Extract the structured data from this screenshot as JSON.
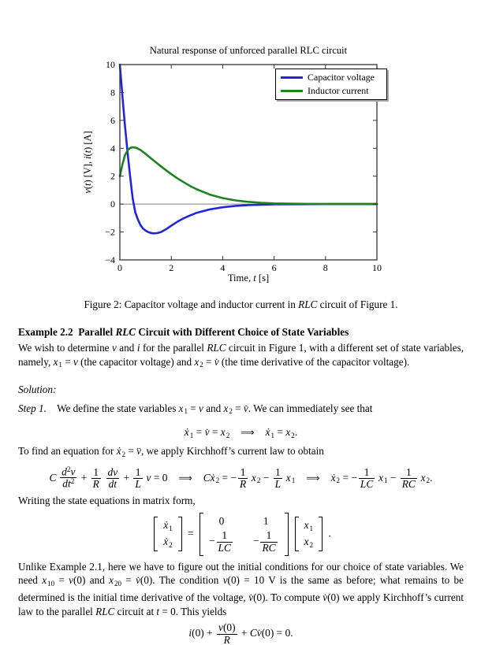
{
  "chart_data": {
    "type": "line",
    "title": "Natural response of unforced parallel RLC circuit",
    "xlabel": "Time, t [s]",
    "ylabel": "v(t) [V], i(t) [A]",
    "xlim": [
      0,
      10
    ],
    "ylim": [
      -4,
      10
    ],
    "xticks": [
      0,
      2,
      4,
      6,
      8,
      10
    ],
    "yticks": [
      -4,
      -2,
      0,
      2,
      4,
      6,
      8,
      10
    ],
    "grid": "none",
    "zero_line": true,
    "legend_position": "top-right",
    "axis_color": "#333333",
    "zero_line_color": "#808080",
    "series": [
      {
        "name": "Capacitor voltage",
        "color": "#2424dd",
        "x": [
          0,
          0.1,
          0.2,
          0.3,
          0.4,
          0.5,
          0.6,
          0.7,
          0.8,
          0.9,
          1.0,
          1.1,
          1.2,
          1.3,
          1.45,
          1.6,
          1.8,
          2.0,
          2.25,
          2.5,
          2.75,
          3.0,
          3.5,
          4.0,
          4.5,
          5.0,
          5.5,
          6.0,
          7.0,
          8.0,
          9.0,
          10.0
        ],
        "y": [
          10,
          7.7,
          5.6,
          3.7,
          2.0,
          0.4,
          -0.6,
          -1.1,
          -1.5,
          -1.75,
          -1.9,
          -2.0,
          -2.07,
          -2.1,
          -2.08,
          -2.0,
          -1.8,
          -1.55,
          -1.25,
          -1.0,
          -0.8,
          -0.62,
          -0.38,
          -0.23,
          -0.13,
          -0.07,
          -0.04,
          -0.02,
          -0.01,
          0,
          0,
          0
        ]
      },
      {
        "name": "Inductor current",
        "color": "#1e8220",
        "x": [
          0,
          0.1,
          0.2,
          0.3,
          0.4,
          0.5,
          0.6,
          0.7,
          0.8,
          1.0,
          1.2,
          1.4,
          1.6,
          1.8,
          2.0,
          2.25,
          2.5,
          2.75,
          3.0,
          3.5,
          4.0,
          4.5,
          5.0,
          5.5,
          6.0,
          7.0,
          8.0,
          9.0,
          10.0
        ],
        "y": [
          2.0,
          2.85,
          3.5,
          3.85,
          4.02,
          4.07,
          4.05,
          3.98,
          3.88,
          3.6,
          3.3,
          3.0,
          2.7,
          2.42,
          2.15,
          1.83,
          1.55,
          1.28,
          1.05,
          0.68,
          0.43,
          0.26,
          0.16,
          0.09,
          0.05,
          0.02,
          0.01,
          0,
          0
        ]
      }
    ]
  },
  "figure": {
    "ylabel_rich": [
      {
        "t": "v",
        "s": "i"
      },
      {
        "t": "("
      },
      {
        "t": "t",
        "s": "i"
      },
      {
        "t": ") [V], "
      },
      {
        "t": "i",
        "s": "i"
      },
      {
        "t": "("
      },
      {
        "t": "t",
        "s": "i"
      },
      {
        "t": ") [A]"
      }
    ],
    "xlabel_rich": [
      {
        "t": "Time, "
      },
      {
        "t": "t",
        "s": "i"
      },
      {
        "t": " [s]"
      }
    ]
  },
  "caption": [
    {
      "t": "Figure 2: Capacitor voltage and inductor current in "
    },
    {
      "t": "RLC",
      "s": "i"
    },
    {
      "t": " circuit of Figure 1."
    }
  ],
  "heading": [
    {
      "t": "Example 2.2 Parallel ",
      "s": "b"
    },
    {
      "t": "RLC",
      "s": "bi"
    },
    {
      "t": " Circuit with Different Choice of State Variables",
      "s": "b"
    }
  ],
  "body": {
    "para1": [
      [
        {
          "t": "We wish to determine "
        },
        {
          "t": "v",
          "s": "i"
        },
        {
          "t": " and "
        },
        {
          "t": "i",
          "s": "i"
        },
        {
          "t": " for the parallel "
        },
        {
          "t": "RLC",
          "s": "i"
        },
        {
          "t": " circuit in Figure 1, with a different set of state variables,"
        }
      ],
      [
        {
          "t": "namely, "
        },
        {
          "t": "x",
          "s": "i"
        },
        {
          "t": "1",
          "v": "sub"
        },
        {
          "t": " = "
        },
        {
          "t": "v",
          "s": "i"
        },
        {
          "t": " (the capacitor voltage) and "
        },
        {
          "t": "x",
          "s": "i"
        },
        {
          "t": "2",
          "v": "sub"
        },
        {
          "t": " = "
        },
        {
          "t": "v̇",
          "s": "i"
        },
        {
          "t": " (the time derivative of the capacitor voltage)."
        }
      ]
    ],
    "solution": [
      {
        "t": "Solution:",
        "s": "i"
      }
    ],
    "step1": [
      {
        "t": "Step 1.",
        "s": "i"
      },
      {
        "t": "  We define the state variables "
      },
      {
        "t": "x",
        "s": "i"
      },
      {
        "t": "1",
        "v": "sub"
      },
      {
        "t": " = "
      },
      {
        "t": "v",
        "s": "i"
      },
      {
        "t": " and "
      },
      {
        "t": "x",
        "s": "i"
      },
      {
        "t": "2",
        "v": "sub"
      },
      {
        "t": " = "
      },
      {
        "t": "v̇",
        "s": "i"
      },
      {
        "t": ". We can immediately see that"
      }
    ],
    "eq_step1": [
      {
        "t": "ẋ",
        "s": "i"
      },
      {
        "t": "1",
        "v": "sub"
      },
      {
        "t": " = "
      },
      {
        "t": "v̇",
        "s": "i"
      },
      {
        "t": " = "
      },
      {
        "t": "x",
        "s": "i"
      },
      {
        "t": "2",
        "v": "sub"
      },
      {
        "t": "⟹",
        "cls": "arrow"
      },
      {
        "t": "ẋ",
        "s": "i"
      },
      {
        "t": "1",
        "v": "sub"
      },
      {
        "t": " = "
      },
      {
        "t": "x",
        "s": "i"
      },
      {
        "t": "2",
        "v": "sub"
      },
      {
        "t": "."
      }
    ],
    "to_find": [
      {
        "t": "To find an equation for "
      },
      {
        "t": "ẋ",
        "s": "i"
      },
      {
        "t": "2",
        "v": "sub"
      },
      {
        "t": " = "
      },
      {
        "t": "v̈",
        "s": "i"
      },
      {
        "t": ", we apply Kirchhoff’s current law to obtain"
      }
    ],
    "eq_kcl": [
      {
        "t": "C",
        "s": "i"
      },
      {
        "t": " "
      },
      {
        "frac": {
          "n": [
            {
              "t": "d",
              "s": "i"
            },
            {
              "t": "2",
              "v": "sup"
            },
            {
              "t": "v",
              "s": "i"
            }
          ],
          "d": [
            {
              "t": "dt",
              "s": "i"
            },
            {
              "t": "2",
              "v": "sup"
            }
          ]
        }
      },
      {
        "t": " + "
      },
      {
        "frac": {
          "n": [
            {
              "t": "1"
            }
          ],
          "d": [
            {
              "t": "R",
              "s": "i"
            }
          ]
        }
      },
      {
        "t": " "
      },
      {
        "frac": {
          "n": [
            {
              "t": "dv",
              "s": "i"
            }
          ],
          "d": [
            {
              "t": "dt",
              "s": "i"
            }
          ]
        }
      },
      {
        "t": " + "
      },
      {
        "frac": {
          "n": [
            {
              "t": "1"
            }
          ],
          "d": [
            {
              "t": "L",
              "s": "i"
            }
          ]
        }
      },
      {
        "t": " "
      },
      {
        "t": "v",
        "s": "i"
      },
      {
        "t": " = 0"
      },
      {
        "t": "⟹",
        "cls": "arrow"
      },
      {
        "t": "C",
        "s": "i"
      },
      {
        "t": "ẋ",
        "s": "i"
      },
      {
        "t": "2",
        "v": "sub"
      },
      {
        "t": " = −"
      },
      {
        "frac": {
          "n": [
            {
              "t": "1"
            }
          ],
          "d": [
            {
              "t": "R",
              "s": "i"
            }
          ]
        }
      },
      {
        "t": " "
      },
      {
        "t": "x",
        "s": "i"
      },
      {
        "t": "2",
        "v": "sub"
      },
      {
        "t": " − "
      },
      {
        "frac": {
          "n": [
            {
              "t": "1"
            }
          ],
          "d": [
            {
              "t": "L",
              "s": "i"
            }
          ]
        }
      },
      {
        "t": " "
      },
      {
        "t": "x",
        "s": "i"
      },
      {
        "t": "1",
        "v": "sub"
      },
      {
        "t": "⟹",
        "cls": "arrow"
      },
      {
        "t": "ẋ",
        "s": "i"
      },
      {
        "t": "2",
        "v": "sub"
      },
      {
        "t": " = −"
      },
      {
        "frac": {
          "n": [
            {
              "t": "1"
            }
          ],
          "d": [
            {
              "t": "LC",
              "s": "i"
            }
          ]
        }
      },
      {
        "t": " "
      },
      {
        "t": "x",
        "s": "i"
      },
      {
        "t": "1",
        "v": "sub"
      },
      {
        "t": " − "
      },
      {
        "frac": {
          "n": [
            {
              "t": "1"
            }
          ],
          "d": [
            {
              "t": "RC",
              "s": "i"
            }
          ]
        }
      },
      {
        "t": " "
      },
      {
        "t": "x",
        "s": "i"
      },
      {
        "t": "2",
        "v": "sub"
      },
      {
        "t": "."
      }
    ],
    "writing": [
      {
        "t": "Writing the state equations in matrix form,"
      }
    ],
    "eq_matrix": [
      {
        "mat": [
          [
            [
              {
                "t": "ẋ",
                "s": "i"
              },
              {
                "t": "1",
                "v": "sub"
              }
            ]
          ],
          [
            [
              {
                "t": "ẋ",
                "s": "i"
              },
              {
                "t": "2",
                "v": "sub"
              }
            ]
          ]
        ]
      },
      {
        "t": " = "
      },
      {
        "mat": [
          [
            [
              {
                "t": "0"
              }
            ],
            [
              {
                "t": "1"
              }
            ]
          ],
          [
            [
              {
                "t": "−"
              },
              {
                "frac": {
                  "n": [
                    {
                      "t": "1"
                    }
                  ],
                  "d": [
                    {
                      "t": "LC",
                      "s": "i"
                    }
                  ]
                }
              }
            ],
            [
              {
                "t": "−"
              },
              {
                "frac": {
                  "n": [
                    {
                      "t": "1"
                    }
                  ],
                  "d": [
                    {
                      "t": "RC",
                      "s": "i"
                    }
                  ]
                }
              }
            ]
          ]
        ]
      },
      {
        "mat": [
          [
            [
              {
                "t": "x",
                "s": "i"
              },
              {
                "t": "1",
                "v": "sub"
              }
            ]
          ],
          [
            [
              {
                "t": "x",
                "s": "i"
              },
              {
                "t": "2",
                "v": "sub"
              }
            ]
          ]
        ]
      },
      {
        "t": " ."
      }
    ],
    "para2": [
      [
        {
          "t": "Unlike Example 2.1, here we have to figure out the initial conditions for our choice of state variables. We"
        }
      ],
      [
        {
          "t": "need "
        },
        {
          "t": "x",
          "s": "i"
        },
        {
          "t": "10",
          "v": "sub"
        },
        {
          "t": " = "
        },
        {
          "t": "v",
          "s": "i"
        },
        {
          "t": "(0) and "
        },
        {
          "t": "x",
          "s": "i"
        },
        {
          "t": "20",
          "v": "sub"
        },
        {
          "t": " = "
        },
        {
          "t": "v̇",
          "s": "i"
        },
        {
          "t": "(0). The condition "
        },
        {
          "t": "v",
          "s": "i"
        },
        {
          "t": "(0) = 10 V is the same as before; what remains to be"
        }
      ],
      [
        {
          "t": "determined is the initial time derivative of the voltage, "
        },
        {
          "t": "v̇",
          "s": "i"
        },
        {
          "t": "(0). To compute "
        },
        {
          "t": "v̇",
          "s": "i"
        },
        {
          "t": "(0) we apply Kirchhoff’s current"
        }
      ],
      [
        {
          "t": "law to the parallel "
        },
        {
          "t": "RLC",
          "s": "i"
        },
        {
          "t": " circuit at "
        },
        {
          "t": "t",
          "s": "i"
        },
        {
          "t": " = 0. This yields"
        }
      ]
    ],
    "eq_initial": [
      {
        "t": "i",
        "s": "i"
      },
      {
        "t": "(0) + "
      },
      {
        "frac": {
          "n": [
            {
              "t": "v",
              "s": "i"
            },
            {
              "t": "(0)"
            }
          ],
          "d": [
            {
              "t": "R",
              "s": "i"
            }
          ]
        }
      },
      {
        "t": " + "
      },
      {
        "t": "C",
        "s": "i"
      },
      {
        "t": "v̇",
        "s": "i"
      },
      {
        "t": "(0) = 0."
      }
    ]
  }
}
